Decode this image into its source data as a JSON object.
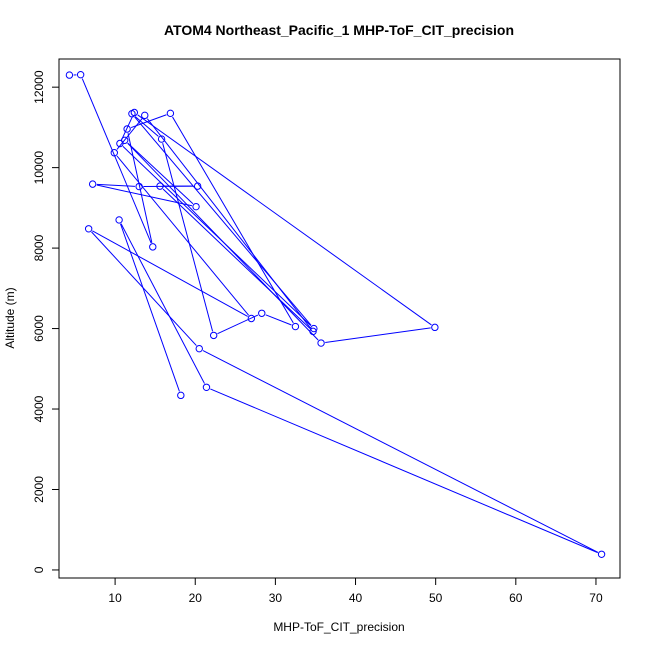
{
  "chart_data": {
    "type": "line",
    "title": "ATOM4 Northeast_Pacific_1 MHP-ToF_CIT_precision",
    "xlabel": "MHP-ToF_CIT_precision",
    "ylabel": "Altitude (m)",
    "xlim": [
      3,
      73
    ],
    "ylim": [
      -200,
      12700
    ],
    "x_ticks": [
      10,
      20,
      30,
      40,
      50,
      60,
      70
    ],
    "y_ticks": [
      0,
      2000,
      4000,
      6000,
      8000,
      10000,
      12000
    ],
    "grid": false,
    "legend": "none",
    "series_color": "#0000ff",
    "marker": "open circle",
    "x": [
      4.3,
      5.7,
      14.7,
      11.5,
      16.9,
      32.5,
      28.3,
      22.3,
      15.8,
      12.1,
      34.8,
      10.6,
      12.4,
      49.9,
      35.7,
      11.2,
      20.1,
      7.2,
      13.0,
      20.3,
      15.6,
      34.7,
      13.7,
      9.9,
      27.0,
      6.7,
      20.5,
      70.7,
      21.4,
      10.5,
      18.2
    ],
    "y": [
      12300,
      12310,
      8030,
      10960,
      11350,
      6050,
      6380,
      5830,
      10710,
      11340,
      6000,
      10600,
      11370,
      6030,
      5640,
      10680,
      9030,
      9590,
      9530,
      9540,
      9540,
      5930,
      11300,
      10370,
      6250,
      8480,
      5500,
      390,
      4540,
      8700,
      4340
    ]
  }
}
